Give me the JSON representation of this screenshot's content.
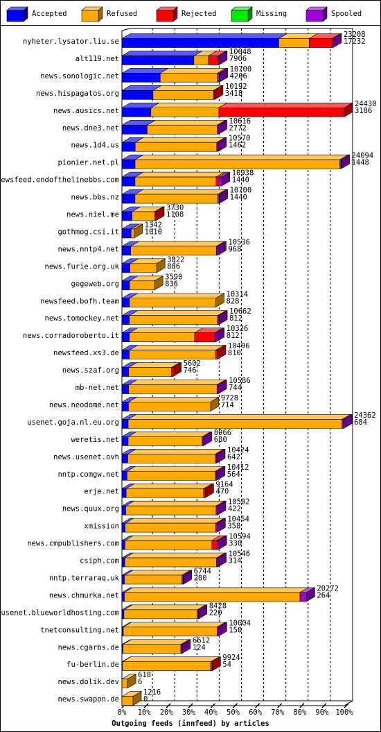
{
  "chart_data": {
    "type": "bar3d",
    "xlabel": "Outgoing feeds (innfeed) by articles",
    "categories": [
      "nyheter.lysator.liu.se",
      "alt119.net",
      "news.sonologic.net",
      "news.hispagatos.org",
      "news.ausics.net",
      "news.dne3.net",
      "news.1d4.us",
      "pionier.net.pl",
      "newsfeed.endofthelinebbs.com",
      "news.bbs.nz",
      "news.niel.me",
      "gothmog.csi.it",
      "news.nntp4.net",
      "news.furie.org.uk",
      "gegeweb.org",
      "newsfeed.bofh.team",
      "news.tomockey.net",
      "news.corradoroberto.it",
      "newsfeed.xs3.de",
      "news.szaf.org",
      "mb-net.net",
      "news.neodome.net",
      "usenet.goja.nl.eu.org",
      "weretis.net",
      "news.usenet.ovh",
      "nntp.comgw.net",
      "erje.net",
      "news.quux.org",
      "xmission",
      "news.cmpublishers.com",
      "csiph.com",
      "nntp.terraraq.uk",
      "news.chmurka.net",
      "usenet.blueworldhosting.com",
      "tnetconsulting.net",
      "news.cgarbs.de",
      "fu-berlin.de",
      "news.dolik.dev",
      "news.swapon.de"
    ],
    "totals": [
      23208,
      10648,
      10700,
      10192,
      24430,
      10616,
      10570,
      24094,
      10938,
      10700,
      3730,
      1342,
      10536,
      3822,
      3590,
      10314,
      10662,
      10326,
      10496,
      5602,
      10586,
      9728,
      24362,
      8966,
      10424,
      10412,
      9164,
      10502,
      10454,
      10594,
      10546,
      6744,
      20272,
      8428,
      10604,
      6612,
      9924,
      618,
      1216
    ],
    "series": [
      {
        "name": "Accepted",
        "color": "#0000ff",
        "values": [
          17232,
          7906,
          4206,
          3418,
          3186,
          2772,
          1462,
          1448,
          1440,
          1440,
          1108,
          1010,
          968,
          886,
          836,
          828,
          812,
          812,
          810,
          746,
          744,
          714,
          684,
          680,
          642,
          564,
          470,
          422,
          358,
          330,
          314,
          280,
          264,
          220,
          150,
          124,
          54,
          6,
          0
        ]
      },
      {
        "name": "Refused",
        "color": "#ffaa00",
        "values": [
          3350,
          1600,
          6300,
          6650,
          7460,
          7700,
          8950,
          22500,
          8900,
          9100,
          2500,
          332,
          9400,
          2936,
          2754,
          9486,
          9700,
          7178,
          9500,
          4700,
          9700,
          9014,
          23500,
          8150,
          9640,
          9700,
          8500,
          9920,
          9950,
          9550,
          10080,
          6320,
          19300,
          8060,
          10300,
          6350,
          9700,
          612,
          1216
        ]
      },
      {
        "name": "Rejected",
        "color": "#ff0000",
        "values": [
          2500,
          1060,
          0,
          124,
          13784,
          0,
          0,
          0,
          300,
          0,
          122,
          0,
          0,
          0,
          0,
          0,
          0,
          2200,
          186,
          156,
          0,
          0,
          0,
          0,
          0,
          0,
          194,
          0,
          0,
          560,
          0,
          0,
          0,
          0,
          0,
          0,
          170,
          0,
          0
        ]
      },
      {
        "name": "Missing",
        "color": "#00ee00",
        "values": [
          0,
          0,
          0,
          0,
          0,
          0,
          0,
          0,
          0,
          0,
          0,
          0,
          0,
          0,
          0,
          0,
          0,
          0,
          0,
          0,
          0,
          0,
          0,
          0,
          0,
          0,
          0,
          0,
          0,
          0,
          0,
          0,
          0,
          0,
          0,
          0,
          0,
          0,
          0
        ]
      },
      {
        "name": "Spooled",
        "color": "#a000e0",
        "values": [
          126,
          82,
          194,
          0,
          0,
          144,
          158,
          146,
          298,
          160,
          0,
          0,
          168,
          0,
          0,
          0,
          150,
          136,
          0,
          0,
          142,
          0,
          178,
          136,
          142,
          148,
          0,
          160,
          146,
          154,
          152,
          144,
          708,
          148,
          154,
          138,
          0,
          0,
          0
        ]
      }
    ],
    "xlim": [
      0,
      24430
    ],
    "xticks": [
      {
        "value": 0,
        "label": "0%"
      },
      {
        "value": 2443,
        "label": "10%"
      },
      {
        "value": 4886,
        "label": "20%"
      },
      {
        "value": 7329,
        "label": "30%"
      },
      {
        "value": 9772,
        "label": "40%"
      },
      {
        "value": 12215,
        "label": "50%"
      },
      {
        "value": 14658,
        "label": "60%"
      },
      {
        "value": 17101,
        "label": "70%"
      },
      {
        "value": 19544,
        "label": "80%"
      },
      {
        "value": 21987,
        "label": "90%"
      },
      {
        "value": 24430,
        "label": "100%"
      }
    ],
    "grid": true
  }
}
